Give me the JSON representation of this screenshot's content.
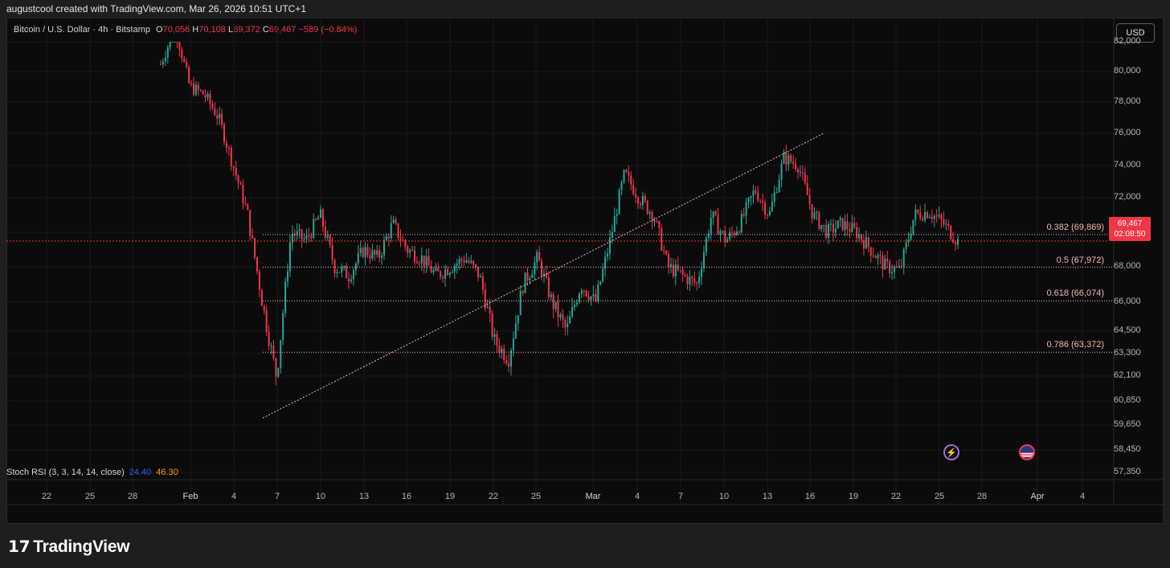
{
  "caption": "augustcool created with TradingView.com, Mar 26, 2026 10:51 UTC+1",
  "header": {
    "symbol": "Bitcoin / U.S. Dollar · 4h · Bitstamp",
    "o_label": "O",
    "o_value": "70,056",
    "h_label": "H",
    "h_value": "70,108",
    "l_label": "L",
    "l_value": "69,372",
    "c_label": "C",
    "c_value": "69,467",
    "change": "−589 (−0.84%)"
  },
  "currency_button": "USD",
  "price_axis": [
    "82,000",
    "80,000",
    "78,000",
    "76,000",
    "74,000",
    "72,000",
    "70,000",
    "68,000",
    "66,000",
    "64,500",
    "63,300",
    "62,100",
    "60,850",
    "59,650",
    "58,450",
    "57,350"
  ],
  "last_price": {
    "value": "69,467",
    "countdown": "02:08:50"
  },
  "fib_levels": [
    {
      "label": "0.382 (69,869)",
      "price": 69869
    },
    {
      "label": "0.5 (67,972)",
      "price": 67972
    },
    {
      "label": "0.618 (66,074)",
      "price": 66074
    },
    {
      "label": "0.786 (63,372)",
      "price": 63372
    }
  ],
  "indicator": {
    "name": "Stoch RSI (3, 3, 14, 14, close)",
    "k": "24.40",
    "d": "46.30"
  },
  "time_axis": [
    "22",
    "25",
    "28",
    "Feb",
    "4",
    "7",
    "10",
    "13",
    "16",
    "19",
    "22",
    "25",
    "Mar",
    "4",
    "7",
    "10",
    "13",
    "16",
    "19",
    "22",
    "25",
    "28",
    "Apr",
    "4"
  ],
  "brand": "TradingView",
  "colors": {
    "up": "#26a69a",
    "down": "#f23645",
    "fib": "#f4b6b0",
    "background": "#0b0b0b"
  },
  "chart_data": {
    "type": "candlestick",
    "interval": "4h",
    "x_start": "Jan 29",
    "x_end": "Mar 26",
    "ylim": [
      57350,
      82000
    ],
    "swing_low": {
      "date": "Feb 6",
      "price": 60000
    },
    "swing_high": {
      "date": "Mar 17",
      "price": 76000
    },
    "close_path": [
      80500,
      83000,
      79000,
      78500,
      77000,
      74000,
      71000,
      66000,
      62000,
      70000,
      69500,
      71000,
      68000,
      67500,
      69000,
      68500,
      70500,
      69000,
      68500,
      67500,
      68000,
      68500,
      67500,
      64000,
      63000,
      67000,
      68500,
      66000,
      64500,
      67000,
      66000,
      69500,
      73500,
      72000,
      71000,
      68000,
      67500,
      67000,
      71000,
      69500,
      70500,
      72500,
      71000,
      74500,
      74000,
      71000,
      70000,
      70500,
      70000,
      69000,
      68000,
      67800,
      71000,
      71200,
      70500,
      69467
    ]
  }
}
